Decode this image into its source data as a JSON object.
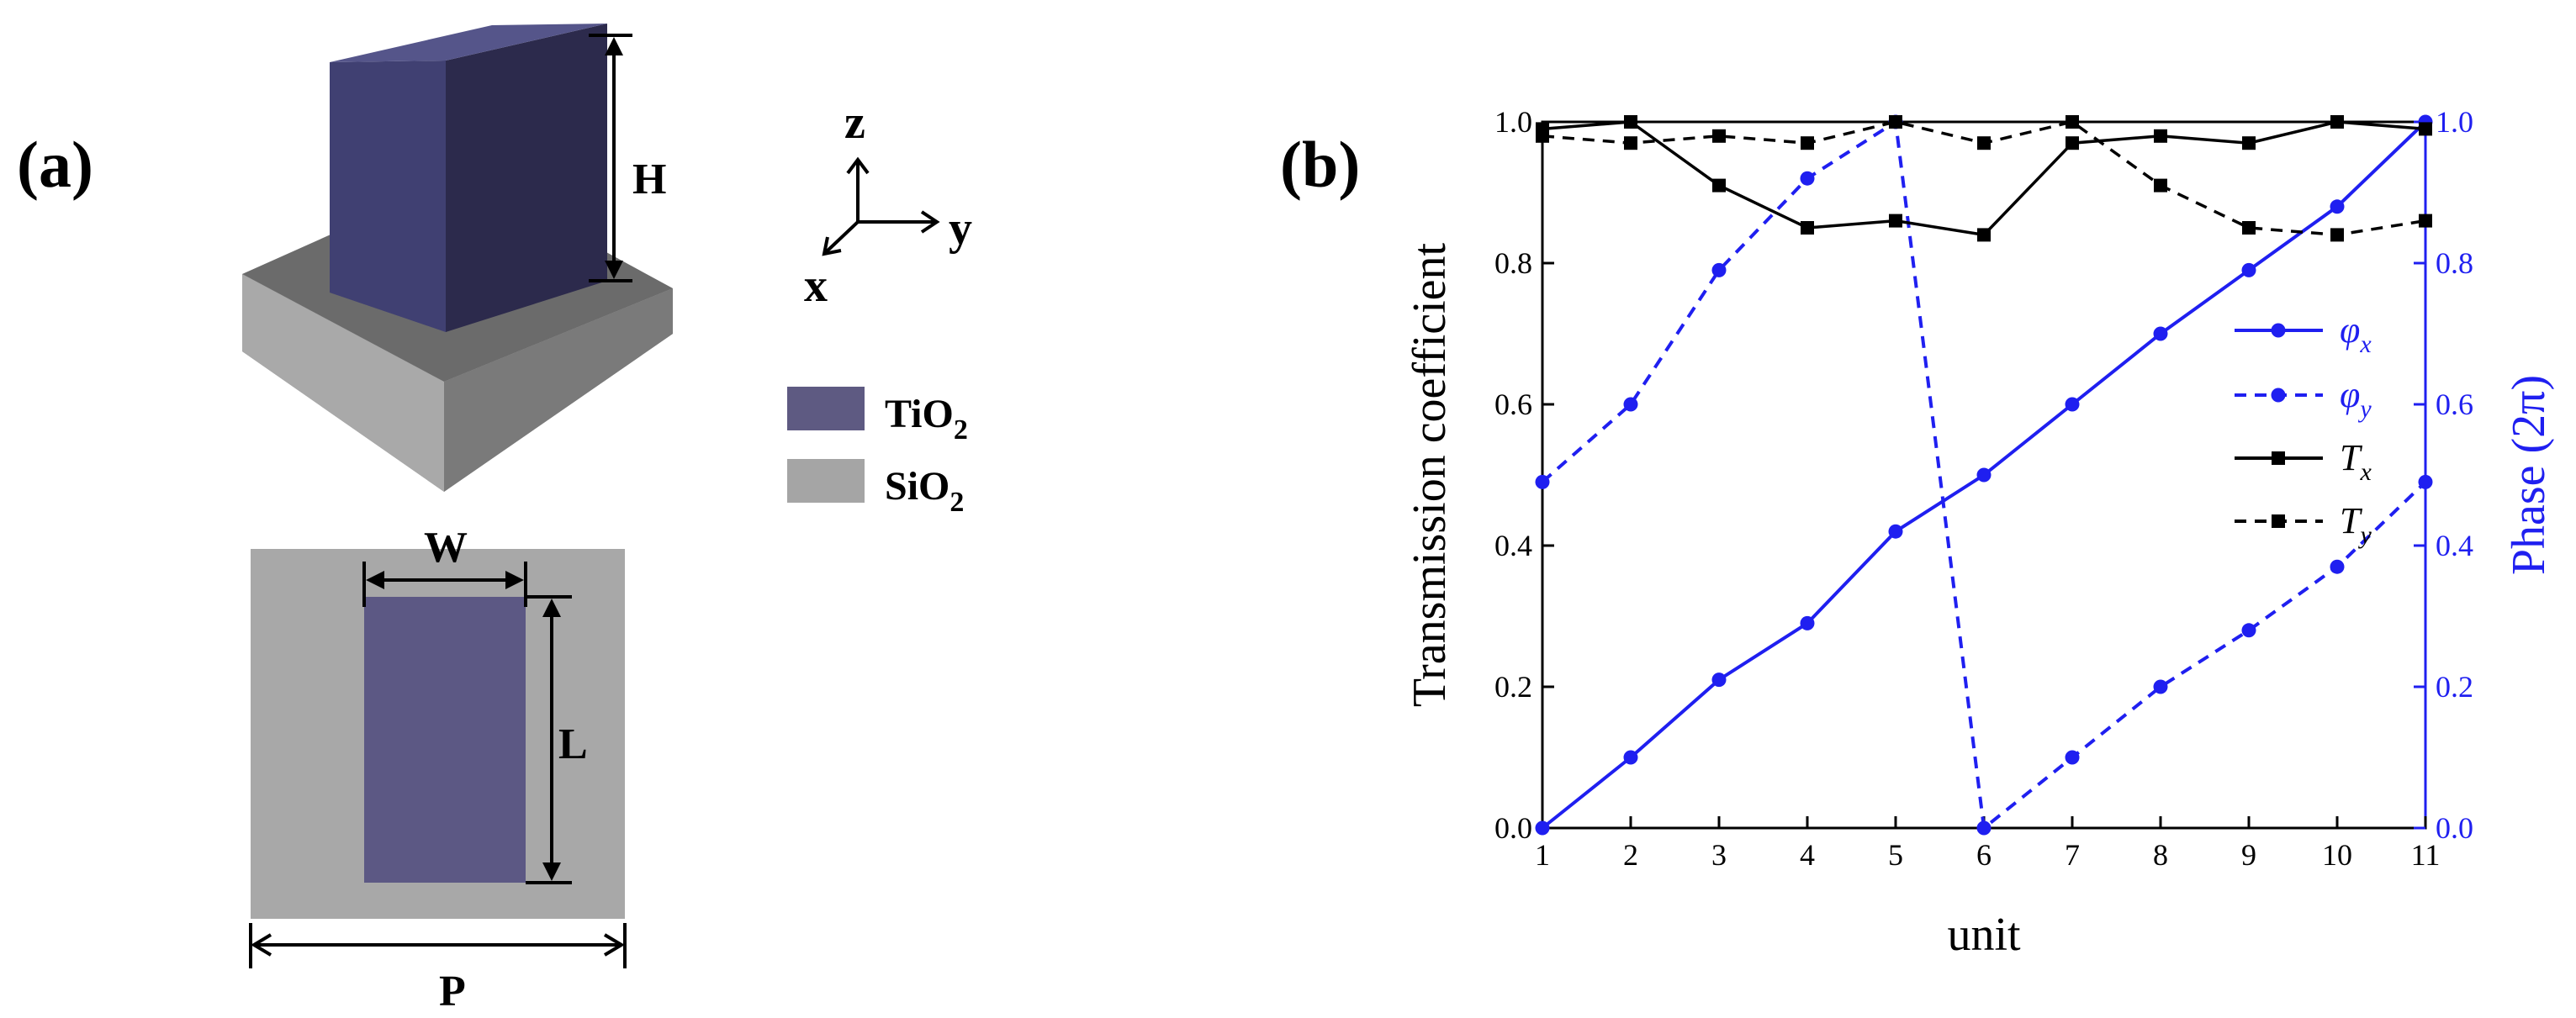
{
  "panel_a": {
    "label": "(a)",
    "dims": {
      "H": "H",
      "W": "W",
      "L": "L",
      "P": "P"
    },
    "axes": {
      "z": "z",
      "y": "y",
      "x": "x"
    },
    "materials": [
      {
        "base": "TiO",
        "sub": "2",
        "color": "#5e5a82"
      },
      {
        "base": "SiO",
        "sub": "2",
        "color": "#a5a5a5"
      }
    ]
  },
  "panel_b": {
    "label": "(b)"
  },
  "chart_data": {
    "type": "line",
    "x": [
      1,
      2,
      3,
      4,
      5,
      6,
      7,
      8,
      9,
      10,
      11
    ],
    "xlabel": "unit",
    "ylabel_left": "Transmission coefficient",
    "ylabel_right": "Phase (2π)",
    "xlim": [
      1,
      11
    ],
    "ylim_left": [
      0,
      1.0
    ],
    "ylim_right": [
      0,
      1.0
    ],
    "yticks": [
      "0.0",
      "0.2",
      "0.4",
      "0.6",
      "0.8",
      "1.0"
    ],
    "xticks": [
      "1",
      "2",
      "3",
      "4",
      "5",
      "6",
      "7",
      "8",
      "9",
      "10",
      "11"
    ],
    "colors": {
      "phase": "#1f1ff0",
      "transmission": "#000000"
    },
    "series": [
      {
        "key": "phi_x",
        "name": "φx",
        "sym": "φ",
        "sub": "x",
        "axis": "right",
        "style": "solid",
        "marker": "circle",
        "values": [
          0.0,
          0.1,
          0.21,
          0.29,
          0.42,
          0.5,
          0.6,
          0.7,
          0.79,
          0.88,
          1.0
        ]
      },
      {
        "key": "phi_y",
        "name": "φy",
        "sym": "φ",
        "sub": "y",
        "axis": "right",
        "style": "dashed",
        "marker": "circle",
        "values": [
          0.49,
          0.6,
          0.79,
          0.92,
          1.0,
          0.0,
          0.1,
          0.2,
          0.28,
          0.37,
          0.49
        ]
      },
      {
        "key": "T_x",
        "name": "Tx",
        "sym": "T",
        "sub": "x",
        "axis": "left",
        "style": "solid",
        "marker": "square",
        "values": [
          0.99,
          1.0,
          0.91,
          0.85,
          0.86,
          0.84,
          0.97,
          0.98,
          0.97,
          1.0,
          0.99
        ]
      },
      {
        "key": "T_y",
        "name": "Ty",
        "sym": "T",
        "sub": "y",
        "axis": "left",
        "style": "dashed",
        "marker": "square",
        "values": [
          0.98,
          0.97,
          0.98,
          0.97,
          1.0,
          0.97,
          1.0,
          0.91,
          0.85,
          0.84,
          0.86
        ]
      }
    ]
  }
}
